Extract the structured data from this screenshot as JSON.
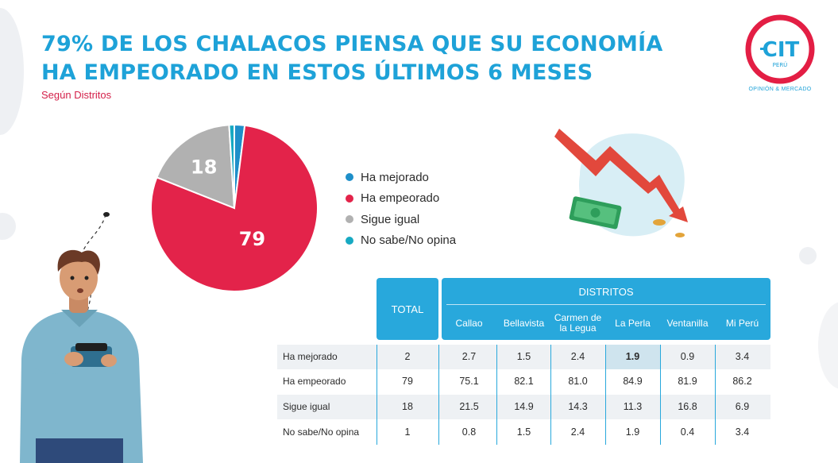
{
  "title": "79% DE LOS CHALACOS PIENSA QUE SU ECONOMÍA HA EMPEORADO EN ESTOS ÚLTIMOS 6 MESES",
  "subtitle": "Según Distritos",
  "logo": {
    "text": "CIT",
    "country": "PERÚ",
    "tagline": "OPINIÓN & MERCADO",
    "ring_color": "#e31e44",
    "text_color": "#1ea2d8"
  },
  "colors": {
    "accent": "#1ea2d8",
    "header": "#28a8dc",
    "subtitle": "#d4204a",
    "row_alt": "#eef1f4",
    "highlight": "#cfe4ee"
  },
  "chart_data": [
    {
      "type": "pie",
      "slices": [
        {
          "label": "Ha mejorado",
          "value": 2,
          "color": "#1e8fc9",
          "show_label": false
        },
        {
          "label": "Ha empeorado",
          "value": 79,
          "color": "#e3234a",
          "show_label": true
        },
        {
          "label": "Sigue igual",
          "value": 18,
          "color": "#b1b1b1",
          "show_label": true
        },
        {
          "label": "No sabe/No opina",
          "value": 1,
          "color": "#17a9c2",
          "show_label": false
        }
      ],
      "legend_position": "right"
    },
    {
      "type": "table",
      "total_header": "TOTAL",
      "group_header": "DISTRITOS",
      "columns": [
        "Callao",
        "Bellavista",
        "Carmen de la Legua",
        "La Perla",
        "Ventanilla",
        "Mi Perú"
      ],
      "rows": [
        {
          "label": "Ha mejorado",
          "total": "2",
          "values": [
            "2.7",
            "1.5",
            "2.4",
            "1.9",
            "0.9",
            "3.4"
          ],
          "highlight_index": 3
        },
        {
          "label": "Ha empeorado",
          "total": "79",
          "values": [
            "75.1",
            "82.1",
            "81.0",
            "84.9",
            "81.9",
            "86.2"
          ]
        },
        {
          "label": "Sigue igual",
          "total": "18",
          "values": [
            "21.5",
            "14.9",
            "14.3",
            "11.3",
            "16.8",
            "6.9"
          ]
        },
        {
          "label": "No sabe/No opina",
          "total": "1",
          "values": [
            "0.8",
            "1.5",
            "2.4",
            "1.9",
            "0.4",
            "3.4"
          ]
        }
      ]
    }
  ],
  "illustrations": {
    "person": "worried-man-with-empty-wallet",
    "money": "falling-arrow-with-cash-and-coins"
  }
}
